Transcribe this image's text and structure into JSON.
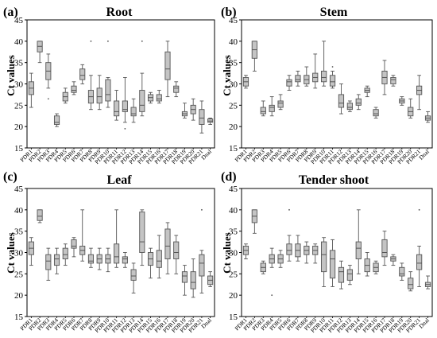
{
  "chart_data": [
    {
      "panel_label": "(a)",
      "title": "Root",
      "type": "box",
      "ylabel": "Ct values",
      "ylim": [
        15,
        45
      ],
      "yticks": [
        15,
        20,
        25,
        30,
        35,
        40,
        45
      ],
      "categories": [
        "PDR1",
        "PDR2",
        "PDR3",
        "PDR4",
        "PDR5",
        "PDR6",
        "PDR7",
        "PDR8",
        "PDR9",
        "PDR10",
        "PDR11",
        "PDR12",
        "PDR13",
        "PDR14",
        "PDR15",
        "PDR16",
        "PDR17",
        "PDR18",
        "PDR19",
        "PDR20",
        "PDR21",
        "Dnal"
      ],
      "boxes": [
        {
          "min": 24.5,
          "q1": 27.5,
          "median": 29.0,
          "q3": 30.5,
          "max": 32.5,
          "outliers": []
        },
        {
          "min": 35.0,
          "q1": 37.5,
          "median": 38.8,
          "q3": 40.0,
          "max": 40.0,
          "outliers": []
        },
        {
          "min": 29.0,
          "q1": 31.0,
          "median": 33.0,
          "q3": 35.0,
          "max": 37.0,
          "outliers": [
            26.5
          ]
        },
        {
          "min": 20.0,
          "q1": 20.5,
          "median": 21.0,
          "q3": 22.5,
          "max": 23.0,
          "outliers": []
        },
        {
          "min": 25.5,
          "q1": 26.0,
          "median": 27.0,
          "q3": 28.0,
          "max": 29.0,
          "outliers": []
        },
        {
          "min": 27.5,
          "q1": 28.0,
          "median": 28.5,
          "q3": 29.5,
          "max": 30.5,
          "outliers": []
        },
        {
          "min": 30.0,
          "q1": 31.0,
          "median": 32.0,
          "q3": 33.5,
          "max": 34.5,
          "outliers": []
        },
        {
          "min": 24.0,
          "q1": 25.5,
          "median": 27.0,
          "q3": 28.5,
          "max": 32.0,
          "outliers": [
            40.0
          ]
        },
        {
          "min": 24.0,
          "q1": 25.5,
          "median": 27.0,
          "q3": 29.0,
          "max": 32.0,
          "outliers": []
        },
        {
          "min": 24.5,
          "q1": 26.0,
          "median": 27.5,
          "q3": 31.0,
          "max": 31.5,
          "outliers": [
            40.0
          ]
        },
        {
          "min": 21.5,
          "q1": 22.5,
          "median": 23.5,
          "q3": 26.0,
          "max": 28.5,
          "outliers": []
        },
        {
          "min": 21.0,
          "q1": 23.5,
          "median": 24.0,
          "q3": 26.0,
          "max": 31.5,
          "outliers": [
            19.5
          ]
        },
        {
          "min": 21.0,
          "q1": 22.5,
          "median": 23.0,
          "q3": 24.5,
          "max": 26.5,
          "outliers": []
        },
        {
          "min": 22.5,
          "q1": 23.5,
          "median": 25.0,
          "q3": 28.5,
          "max": 32.5,
          "outliers": [
            40.0
          ]
        },
        {
          "min": 25.5,
          "q1": 26.0,
          "median": 26.8,
          "q3": 27.5,
          "max": 28.0,
          "outliers": []
        },
        {
          "min": 25.5,
          "q1": 26.0,
          "median": 26.5,
          "q3": 27.5,
          "max": 28.5,
          "outliers": []
        },
        {
          "min": 27.0,
          "q1": 31.0,
          "median": 33.5,
          "q3": 37.5,
          "max": 40.0,
          "outliers": []
        },
        {
          "min": 27.0,
          "q1": 28.0,
          "median": 29.0,
          "q3": 29.5,
          "max": 30.5,
          "outliers": []
        },
        {
          "min": 22.0,
          "q1": 22.5,
          "median": 23.0,
          "q3": 23.5,
          "max": 25.5,
          "outliers": []
        },
        {
          "min": 21.5,
          "q1": 23.0,
          "median": 24.0,
          "q3": 25.0,
          "max": 26.5,
          "outliers": []
        },
        {
          "min": 18.5,
          "q1": 20.5,
          "median": 22.0,
          "q3": 24.0,
          "max": 26.0,
          "outliers": []
        },
        {
          "min": 20.5,
          "q1": 21.0,
          "median": 21.3,
          "q3": 21.8,
          "max": 22.0,
          "outliers": []
        }
      ]
    },
    {
      "panel_label": "(b)",
      "title": "Stem",
      "type": "box",
      "ylabel": "Ct values",
      "ylim": [
        15,
        45
      ],
      "yticks": [
        15,
        20,
        25,
        30,
        35,
        40,
        45
      ],
      "categories": [
        "PDR1",
        "PDR2",
        "PDR3",
        "PDR4",
        "PDR5",
        "PDR6",
        "PDR7",
        "PDR8",
        "PDR9",
        "PDR10",
        "PDR11",
        "PDR12",
        "PDR13",
        "PDR14",
        "PDR15",
        "PDR16",
        "PDR17",
        "PDR18",
        "PDR19",
        "PDR20",
        "PDR21",
        "Dnal"
      ],
      "boxes": [
        {
          "min": 29.0,
          "q1": 29.5,
          "median": 30.5,
          "q3": 31.5,
          "max": 32.0,
          "outliers": []
        },
        {
          "min": 33.0,
          "q1": 36.0,
          "median": 38.0,
          "q3": 40.0,
          "max": 40.0,
          "outliers": []
        },
        {
          "min": 22.5,
          "q1": 23.0,
          "median": 23.5,
          "q3": 24.5,
          "max": 26.0,
          "outliers": []
        },
        {
          "min": 22.5,
          "q1": 23.5,
          "median": 24.5,
          "q3": 25.0,
          "max": 27.0,
          "outliers": []
        },
        {
          "min": 24.0,
          "q1": 24.5,
          "median": 25.5,
          "q3": 26.0,
          "max": 27.5,
          "outliers": []
        },
        {
          "min": 28.5,
          "q1": 29.5,
          "median": 30.5,
          "q3": 31.0,
          "max": 32.0,
          "outliers": []
        },
        {
          "min": 29.5,
          "q1": 30.5,
          "median": 31.0,
          "q3": 32.0,
          "max": 33.0,
          "outliers": []
        },
        {
          "min": 29.5,
          "q1": 30.0,
          "median": 31.0,
          "q3": 32.0,
          "max": 34.0,
          "outliers": []
        },
        {
          "min": 29.0,
          "q1": 30.5,
          "median": 31.5,
          "q3": 32.5,
          "max": 37.0,
          "outliers": []
        },
        {
          "min": 29.5,
          "q1": 30.5,
          "median": 31.5,
          "q3": 33.0,
          "max": 40.0,
          "outliers": []
        },
        {
          "min": 29.0,
          "q1": 29.5,
          "median": 30.5,
          "q3": 32.0,
          "max": 33.0,
          "outliers": [
            34.0
          ]
        },
        {
          "min": 23.0,
          "q1": 24.5,
          "median": 25.5,
          "q3": 27.5,
          "max": 30.0,
          "outliers": []
        },
        {
          "min": 23.5,
          "q1": 24.0,
          "median": 24.5,
          "q3": 25.5,
          "max": 26.0,
          "outliers": []
        },
        {
          "min": 24.0,
          "q1": 25.0,
          "median": 25.5,
          "q3": 26.5,
          "max": 27.5,
          "outliers": []
        },
        {
          "min": 27.0,
          "q1": 28.0,
          "median": 28.5,
          "q3": 29.0,
          "max": 29.5,
          "outliers": []
        },
        {
          "min": 22.0,
          "q1": 22.5,
          "median": 23.0,
          "q3": 24.0,
          "max": 24.5,
          "outliers": []
        },
        {
          "min": 27.5,
          "q1": 30.0,
          "median": 31.5,
          "q3": 33.0,
          "max": 35.5,
          "outliers": []
        },
        {
          "min": 29.5,
          "q1": 30.0,
          "median": 31.0,
          "q3": 31.5,
          "max": 32.0,
          "outliers": []
        },
        {
          "min": 25.0,
          "q1": 25.5,
          "median": 26.0,
          "q3": 26.5,
          "max": 27.0,
          "outliers": []
        },
        {
          "min": 22.0,
          "q1": 22.5,
          "median": 23.5,
          "q3": 24.5,
          "max": 26.5,
          "outliers": []
        },
        {
          "min": 24.0,
          "q1": 27.5,
          "median": 28.5,
          "q3": 29.5,
          "max": 32.0,
          "outliers": []
        },
        {
          "min": 21.0,
          "q1": 21.5,
          "median": 22.0,
          "q3": 22.5,
          "max": 23.5,
          "outliers": []
        }
      ]
    },
    {
      "panel_label": "(c)",
      "title": "Leaf",
      "type": "box",
      "ylabel": "Ct values",
      "ylim": [
        15,
        45
      ],
      "yticks": [
        15,
        20,
        25,
        30,
        35,
        40,
        45
      ],
      "categories": [
        "PDR1",
        "PDR2",
        "PDR3",
        "PDR4",
        "PDR5",
        "PDR6",
        "PDR7",
        "PDR8",
        "PDR9",
        "PDR10",
        "PDR11",
        "PDR12",
        "PDR13",
        "PDR14",
        "PDR15",
        "PDR16",
        "PDR17",
        "PDR18",
        "PDR19",
        "PDR20",
        "PDR21",
        "Dnal"
      ],
      "boxes": [
        {
          "min": 27.0,
          "q1": 29.5,
          "median": 31.0,
          "q3": 32.5,
          "max": 33.5,
          "outliers": []
        },
        {
          "min": 37.0,
          "q1": 37.5,
          "median": 38.5,
          "q3": 40.0,
          "max": 40.0,
          "outliers": []
        },
        {
          "min": 23.5,
          "q1": 26.0,
          "median": 28.0,
          "q3": 29.5,
          "max": 31.0,
          "outliers": []
        },
        {
          "min": 25.0,
          "q1": 27.0,
          "median": 28.5,
          "q3": 29.5,
          "max": 31.0,
          "outliers": []
        },
        {
          "min": 27.0,
          "q1": 28.5,
          "median": 29.5,
          "q3": 31.0,
          "max": 32.0,
          "outliers": []
        },
        {
          "min": 29.0,
          "q1": 31.0,
          "median": 31.5,
          "q3": 33.0,
          "max": 33.5,
          "outliers": []
        },
        {
          "min": 28.0,
          "q1": 29.5,
          "median": 30.5,
          "q3": 31.5,
          "max": 40.0,
          "outliers": []
        },
        {
          "min": 26.5,
          "q1": 27.5,
          "median": 28.0,
          "q3": 29.5,
          "max": 31.0,
          "outliers": []
        },
        {
          "min": 26.0,
          "q1": 27.5,
          "median": 28.5,
          "q3": 29.5,
          "max": 31.0,
          "outliers": []
        },
        {
          "min": 25.5,
          "q1": 27.5,
          "median": 28.5,
          "q3": 29.5,
          "max": 31.0,
          "outliers": []
        },
        {
          "min": 26.5,
          "q1": 27.5,
          "median": 29.0,
          "q3": 32.0,
          "max": 40.0,
          "outliers": []
        },
        {
          "min": 26.5,
          "q1": 27.5,
          "median": 28.5,
          "q3": 29.0,
          "max": 30.0,
          "outliers": []
        },
        {
          "min": 20.5,
          "q1": 23.5,
          "median": 24.5,
          "q3": 26.0,
          "max": 27.5,
          "outliers": []
        },
        {
          "min": 27.0,
          "q1": 30.0,
          "median": 32.5,
          "q3": 39.5,
          "max": 40.0,
          "outliers": []
        },
        {
          "min": 24.0,
          "q1": 27.0,
          "median": 28.5,
          "q3": 30.0,
          "max": 31.0,
          "outliers": []
        },
        {
          "min": 24.0,
          "q1": 26.5,
          "median": 28.0,
          "q3": 30.5,
          "max": 34.0,
          "outliers": []
        },
        {
          "min": 25.0,
          "q1": 28.5,
          "median": 31.5,
          "q3": 35.5,
          "max": 37.0,
          "outliers": []
        },
        {
          "min": 25.0,
          "q1": 28.5,
          "median": 30.0,
          "q3": 32.5,
          "max": 34.0,
          "outliers": []
        },
        {
          "min": 20.0,
          "q1": 23.0,
          "median": 24.5,
          "q3": 25.5,
          "max": 27.0,
          "outliers": []
        },
        {
          "min": 19.5,
          "q1": 21.5,
          "median": 23.0,
          "q3": 25.5,
          "max": 28.5,
          "outliers": []
        },
        {
          "min": 20.5,
          "q1": 24.5,
          "median": 27.5,
          "q3": 29.5,
          "max": 30.5,
          "outliers": [
            40.0
          ]
        },
        {
          "min": 22.0,
          "q1": 22.5,
          "median": 23.5,
          "q3": 24.5,
          "max": 25.5,
          "outliers": []
        }
      ]
    },
    {
      "panel_label": "(d)",
      "title": "Tender shoot",
      "type": "box",
      "ylabel": "Ct values",
      "ylim": [
        15,
        45
      ],
      "yticks": [
        15,
        20,
        25,
        30,
        35,
        40,
        45
      ],
      "categories": [
        "PDR1",
        "PDR2",
        "PDR3",
        "PDR4",
        "PDR5",
        "PDR6",
        "PDR7",
        "PDR8",
        "PDR9",
        "PDR10",
        "PDR11",
        "PDR12",
        "PDR13",
        "PDR14",
        "PDR15",
        "PDR16",
        "PDR17",
        "PDR18",
        "PDR19",
        "PDR20",
        "PDR21",
        "Dnal"
      ],
      "boxes": [
        {
          "min": 28.5,
          "q1": 29.5,
          "median": 30.5,
          "q3": 31.5,
          "max": 32.0,
          "outliers": []
        },
        {
          "min": 34.5,
          "q1": 37.0,
          "median": 38.5,
          "q3": 40.0,
          "max": 40.0,
          "outliers": []
        },
        {
          "min": 25.0,
          "q1": 25.5,
          "median": 26.5,
          "q3": 27.5,
          "max": 28.0,
          "outliers": []
        },
        {
          "min": 26.5,
          "q1": 27.5,
          "median": 28.5,
          "q3": 29.5,
          "max": 31.0,
          "outliers": [
            20.0
          ]
        },
        {
          "min": 26.5,
          "q1": 27.5,
          "median": 28.5,
          "q3": 29.5,
          "max": 30.5,
          "outliers": []
        },
        {
          "min": 28.0,
          "q1": 29.5,
          "median": 30.5,
          "q3": 32.0,
          "max": 34.0,
          "outliers": [
            40.0
          ]
        },
        {
          "min": 28.0,
          "q1": 29.0,
          "median": 30.5,
          "q3": 32.0,
          "max": 34.0,
          "outliers": []
        },
        {
          "min": 27.5,
          "q1": 29.5,
          "median": 30.5,
          "q3": 31.5,
          "max": 32.5,
          "outliers": []
        },
        {
          "min": 27.5,
          "q1": 29.5,
          "median": 30.5,
          "q3": 31.5,
          "max": 32.0,
          "outliers": []
        },
        {
          "min": 22.0,
          "q1": 25.5,
          "median": 29.5,
          "q3": 32.5,
          "max": 33.5,
          "outliers": []
        },
        {
          "min": 22.0,
          "q1": 24.0,
          "median": 28.5,
          "q3": 30.5,
          "max": 33.0,
          "outliers": []
        },
        {
          "min": 21.5,
          "q1": 23.0,
          "median": 25.5,
          "q3": 26.5,
          "max": 28.0,
          "outliers": []
        },
        {
          "min": 22.5,
          "q1": 23.5,
          "median": 25.0,
          "q3": 26.0,
          "max": 27.0,
          "outliers": []
        },
        {
          "min": 25.0,
          "q1": 28.5,
          "median": 31.0,
          "q3": 32.5,
          "max": 40.0,
          "outliers": []
        },
        {
          "min": 24.5,
          "q1": 25.5,
          "median": 27.0,
          "q3": 28.5,
          "max": 30.0,
          "outliers": []
        },
        {
          "min": 25.0,
          "q1": 25.5,
          "median": 26.5,
          "q3": 27.5,
          "max": 28.0,
          "outliers": []
        },
        {
          "min": 27.0,
          "q1": 29.0,
          "median": 30.0,
          "q3": 33.0,
          "max": 35.0,
          "outliers": []
        },
        {
          "min": 27.0,
          "q1": 28.0,
          "median": 28.5,
          "q3": 29.0,
          "max": 29.5,
          "outliers": []
        },
        {
          "min": 23.5,
          "q1": 24.5,
          "median": 25.0,
          "q3": 26.5,
          "max": 27.5,
          "outliers": []
        },
        {
          "min": 21.0,
          "q1": 21.5,
          "median": 22.5,
          "q3": 24.0,
          "max": 25.5,
          "outliers": []
        },
        {
          "min": 22.0,
          "q1": 26.0,
          "median": 27.5,
          "q3": 29.5,
          "max": 31.5,
          "outliers": [
            40.0
          ]
        },
        {
          "min": 21.5,
          "q1": 22.0,
          "median": 22.5,
          "q3": 23.0,
          "max": 24.5,
          "outliers": []
        }
      ]
    }
  ],
  "colors": {
    "box_fill": "#c4c4c4",
    "line": "#555555",
    "axis": "#000000"
  }
}
